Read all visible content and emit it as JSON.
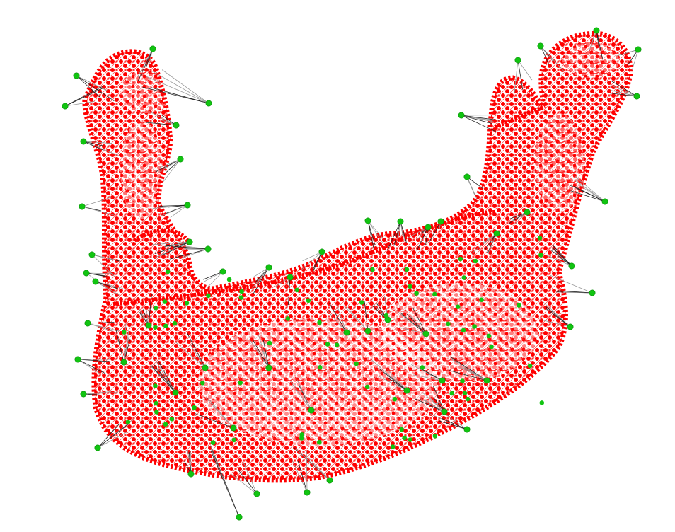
{
  "scene": {
    "subject": "mandible-point-cloud",
    "colors": {
      "background": "#ffffff",
      "mesh_point": "#ff0000",
      "mesh_point_dark": "#e00000",
      "landmark": "#11c411",
      "landmark_edge": "#0a8a0a",
      "correspondence_line": "#222222",
      "correspondence_line_light": "#9a9a9a"
    },
    "icons": {
      "mesh": "red-dot-mesh",
      "landmark": "green-dot-landmark"
    }
  }
}
